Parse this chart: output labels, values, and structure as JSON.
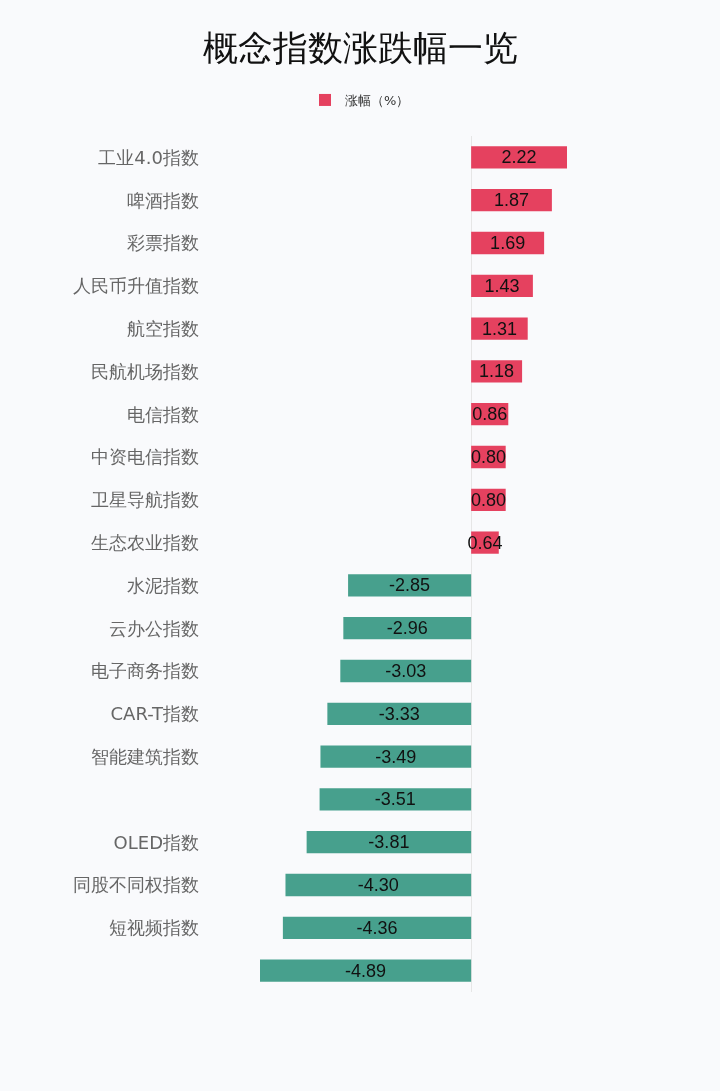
{
  "chart_data": {
    "type": "bar",
    "orientation": "horizontal",
    "title": "概念指数涨跌幅一览",
    "categories": [
      "工业4.0指数",
      "啤酒指数",
      "彩票指数",
      "人民币升值指数",
      "航空指数",
      "民航机场指数",
      "电信指数",
      "中资电信指数",
      "卫星导航指数",
      "生态农业指数",
      "水泥指数",
      "云办公指数",
      "电子商务指数",
      "CAR-T指数",
      "智能建筑指数",
      null,
      "OLED指数",
      "同股不同权指数",
      "短视频指数",
      null
    ],
    "series": [
      {
        "name": "涨幅（%）",
        "values": [
          2.22,
          1.87,
          1.69,
          1.43,
          1.31,
          1.18,
          0.86,
          0.8,
          0.8,
          0.64,
          -2.85,
          -2.96,
          -3.03,
          -3.33,
          -3.49,
          -3.51,
          -3.81,
          -4.3,
          -4.36,
          -4.89
        ],
        "value_labels": [
          "2.22",
          "1.87",
          "1.69",
          "1.43",
          "1.31",
          "1.18",
          "0.86",
          "0.80",
          "0.80",
          "0.64",
          "-2.85",
          "-2.96",
          "-3.03",
          "-3.33",
          "-3.49",
          "-3.51",
          "-3.81",
          "-4.30",
          "-4.36",
          "-4.89"
        ],
        "colors": [
          "#e5415f",
          "#e5415f",
          "#e5415f",
          "#e5415f",
          "#e5415f",
          "#e5415f",
          "#e5415f",
          "#e5415f",
          "#e5415f",
          "#e5415f",
          "#47a08d",
          "#47a08d",
          "#47a08d",
          "#47a08d",
          "#47a08d",
          "#47a08d",
          "#47a08d",
          "#47a08d",
          "#47a08d",
          "#47a08d"
        ]
      }
    ],
    "tick_labels": "y",
    "legend": "top"
  }
}
